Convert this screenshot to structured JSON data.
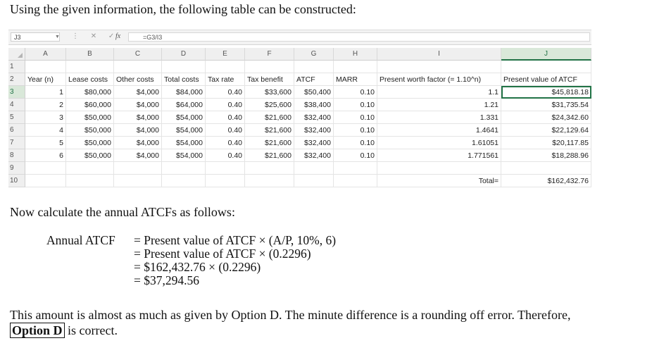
{
  "intro_text": "Using the given information, the following table can be constructed:",
  "spreadsheet": {
    "name_box": "J3",
    "formula_icons": "⋮ ✕ ✓",
    "fx_label": "fx",
    "formula": "=G3/I3",
    "columns": [
      "A",
      "B",
      "C",
      "D",
      "E",
      "F",
      "G",
      "H",
      "I",
      "J"
    ],
    "rows": [
      "1",
      "2",
      "3",
      "4",
      "5",
      "6",
      "7",
      "8",
      "9",
      "10"
    ],
    "headers": [
      "Year (n)",
      "Lease costs",
      "Other costs",
      "Total costs",
      "Tax rate",
      "Tax benefit",
      "ATCF",
      "MARR",
      "Present worth factor (= 1.10^n)",
      "Present value of ATCF"
    ],
    "data": [
      [
        "1",
        "$80,000",
        "$4,000",
        "$84,000",
        "0.40",
        "$33,600",
        "$50,400",
        "0.10",
        "1.1",
        "$45,818.18"
      ],
      [
        "2",
        "$60,000",
        "$4,000",
        "$64,000",
        "0.40",
        "$25,600",
        "$38,400",
        "0.10",
        "1.21",
        "$31,735.54"
      ],
      [
        "3",
        "$50,000",
        "$4,000",
        "$54,000",
        "0.40",
        "$21,600",
        "$32,400",
        "0.10",
        "1.331",
        "$24,342.60"
      ],
      [
        "4",
        "$50,000",
        "$4,000",
        "$54,000",
        "0.40",
        "$21,600",
        "$32,400",
        "0.10",
        "1.4641",
        "$22,129.64"
      ],
      [
        "5",
        "$50,000",
        "$4,000",
        "$54,000",
        "0.40",
        "$21,600",
        "$32,400",
        "0.10",
        "1.61051",
        "$20,117.85"
      ],
      [
        "6",
        "$50,000",
        "$4,000",
        "$54,000",
        "0.40",
        "$21,600",
        "$32,400",
        "0.10",
        "1.771561",
        "$18,288.96"
      ]
    ],
    "total_label": "Total=",
    "total_value": "$162,432.76"
  },
  "calc_intro": "Now calculate the annual ATCFs as follows:",
  "equation": {
    "label": "Annual ATCF",
    "lines": [
      "= Present value of ATCF × (A/P, 10%, 6)",
      "= Present value of ATCF × (0.2296)",
      "= $162,432.76 × (0.2296)",
      "= $37,294.56"
    ]
  },
  "conclusion": {
    "text": "This amount is almost as much as given by Option D. The minute difference is a rounding off error. Therefore,",
    "option_label": "Option D",
    "suffix": " is correct."
  }
}
